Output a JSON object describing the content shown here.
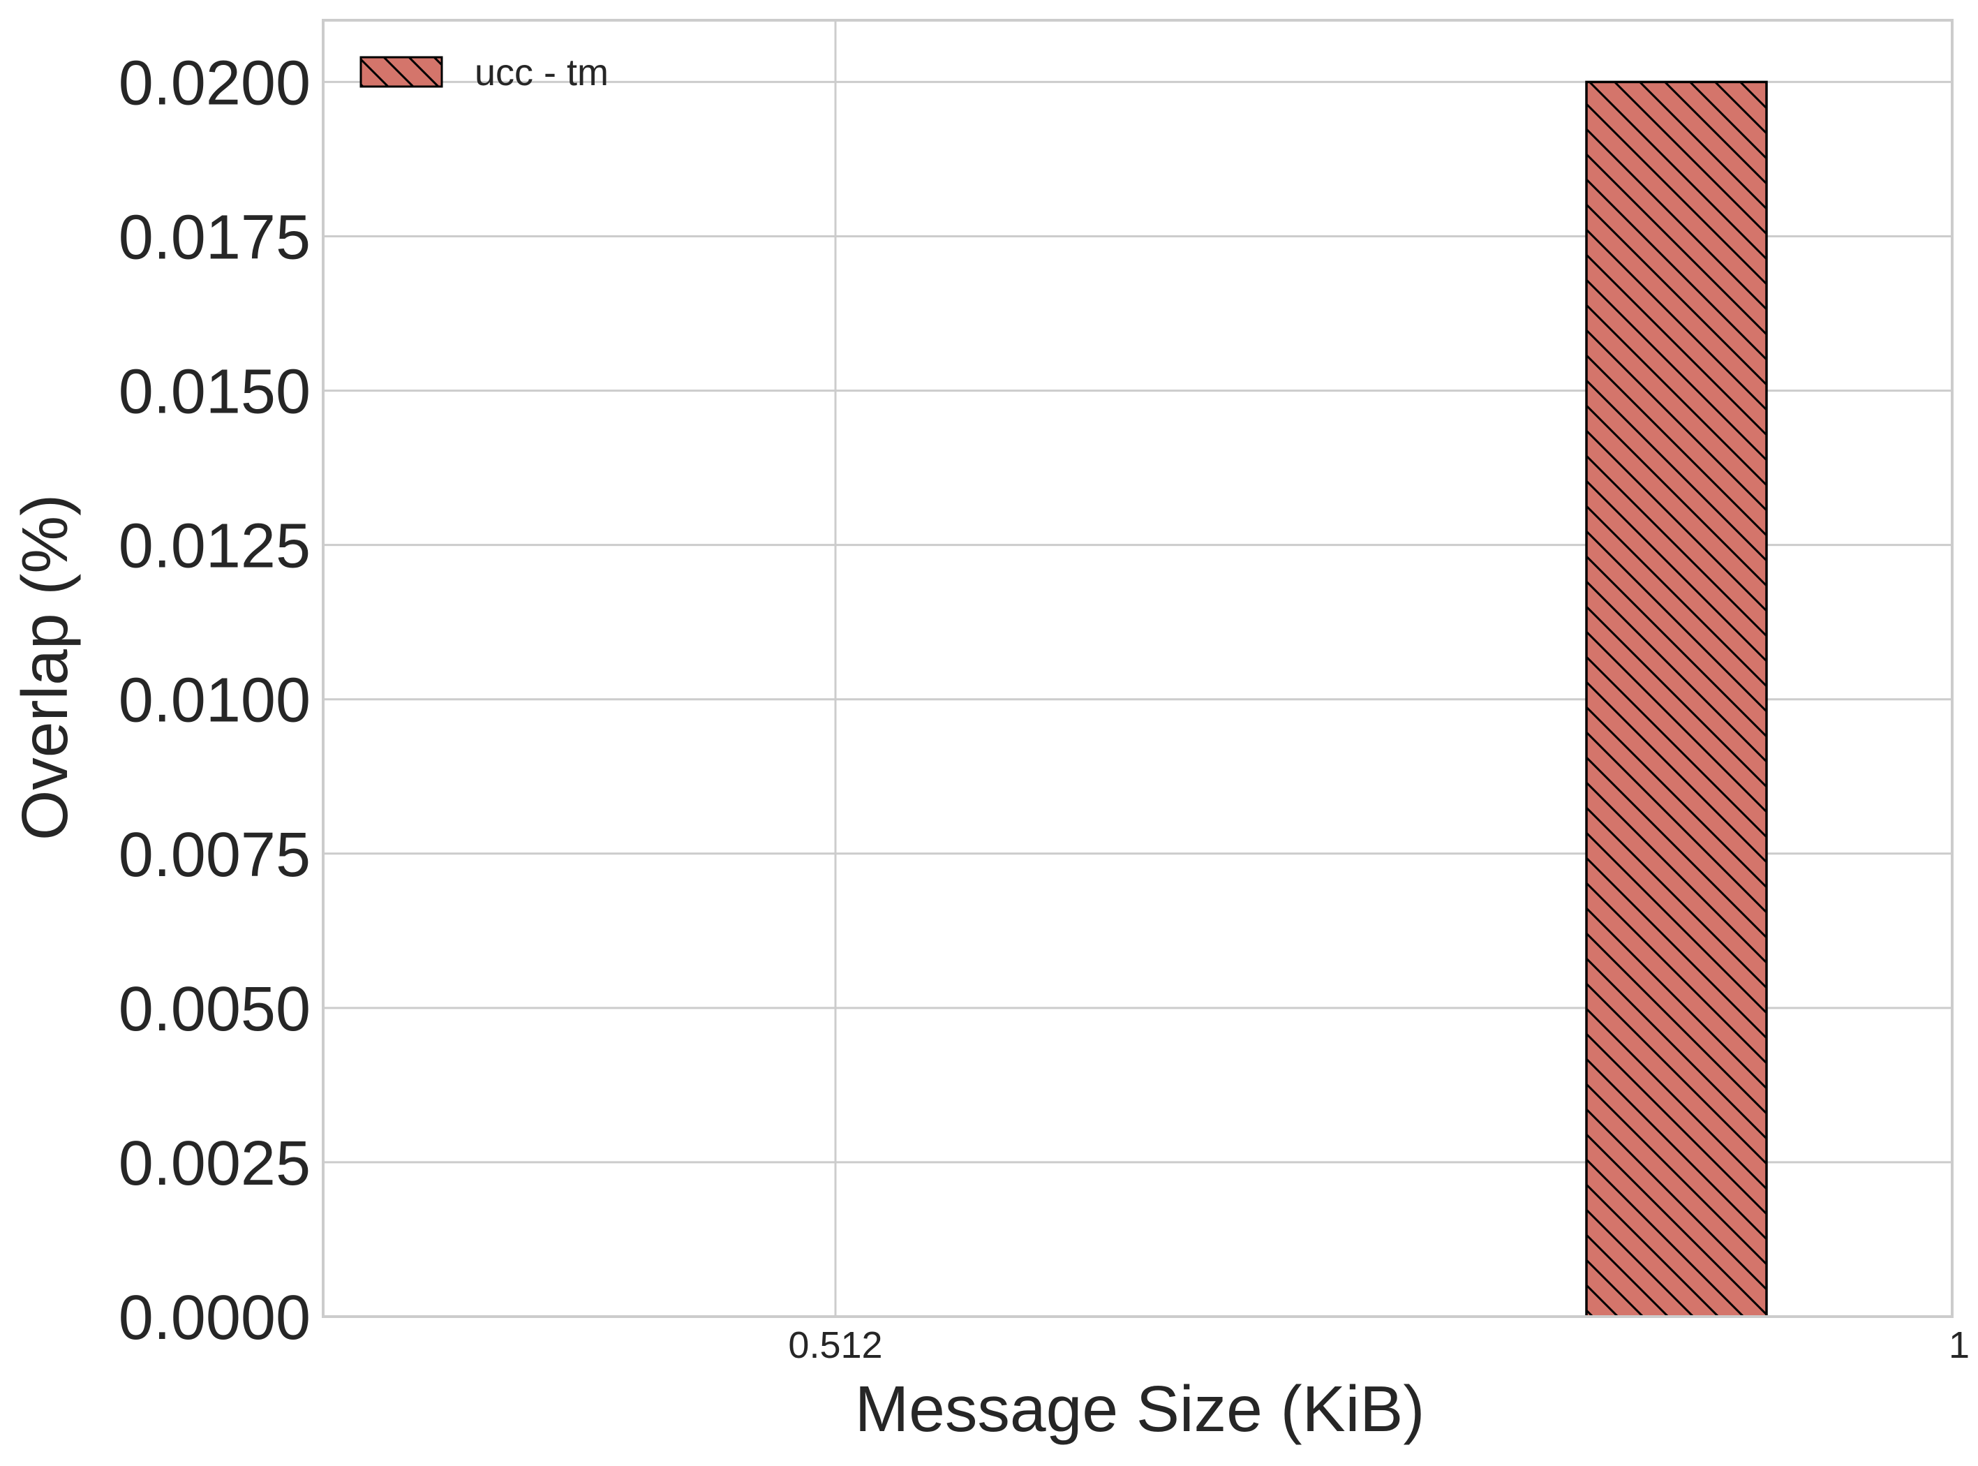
{
  "chart_data": {
    "type": "bar",
    "xlabel": "Message Size (KiB)",
    "ylabel": "Overlap (%)",
    "ylim": [
      0,
      0.021
    ],
    "yticks": [
      "0.0000",
      "0.0025",
      "0.0050",
      "0.0075",
      "0.0100",
      "0.0125",
      "0.0150",
      "0.0175",
      "0.0200"
    ],
    "x_ticks": [
      "0.512",
      "1"
    ],
    "legend_position": "upper-left",
    "grid": true,
    "series": [
      {
        "name": "ucc - tm",
        "color": "#d4756b",
        "hatch": "diagonal-backslash",
        "points": [
          {
            "x": "1",
            "y": 0.02
          }
        ]
      }
    ]
  }
}
